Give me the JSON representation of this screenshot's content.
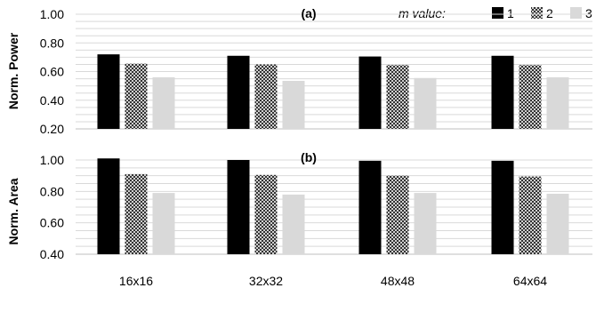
{
  "legend": {
    "title": "m value:",
    "items": [
      {
        "label": "1",
        "color": "#000000",
        "pattern": "solid"
      },
      {
        "label": "2",
        "color": "#555555",
        "pattern": "checker"
      },
      {
        "label": "3",
        "color": "#d9d9d9",
        "pattern": "solid"
      }
    ]
  },
  "chart_data": [
    {
      "type": "bar",
      "title": "(a)",
      "ylabel": "Norm. Power",
      "categories": [
        "16x16",
        "32x32",
        "48x48",
        "64x64"
      ],
      "ylim": [
        0.2,
        1.0
      ],
      "yticks": [
        "1.00",
        "0.80",
        "0.60",
        "0.40",
        "0.20"
      ],
      "grid": true,
      "legend_position": "top-right",
      "series": [
        {
          "name": "1",
          "values": [
            0.72,
            0.71,
            0.705,
            0.71
          ]
        },
        {
          "name": "2",
          "values": [
            0.655,
            0.65,
            0.645,
            0.645
          ]
        },
        {
          "name": "3",
          "values": [
            0.56,
            0.535,
            0.555,
            0.56
          ]
        }
      ]
    },
    {
      "type": "bar",
      "title": "(b)",
      "ylabel": "Norm. Area",
      "categories": [
        "16x16",
        "32x32",
        "48x48",
        "64x64"
      ],
      "ylim": [
        0.4,
        1.0
      ],
      "yticks": [
        "1.00",
        "0.80",
        "0.60",
        "0.40"
      ],
      "grid": true,
      "series": [
        {
          "name": "1",
          "values": [
            1.01,
            1.0,
            0.995,
            0.995
          ]
        },
        {
          "name": "2",
          "values": [
            0.91,
            0.905,
            0.9,
            0.895
          ]
        },
        {
          "name": "3",
          "values": [
            0.79,
            0.78,
            0.79,
            0.785
          ]
        }
      ]
    }
  ]
}
